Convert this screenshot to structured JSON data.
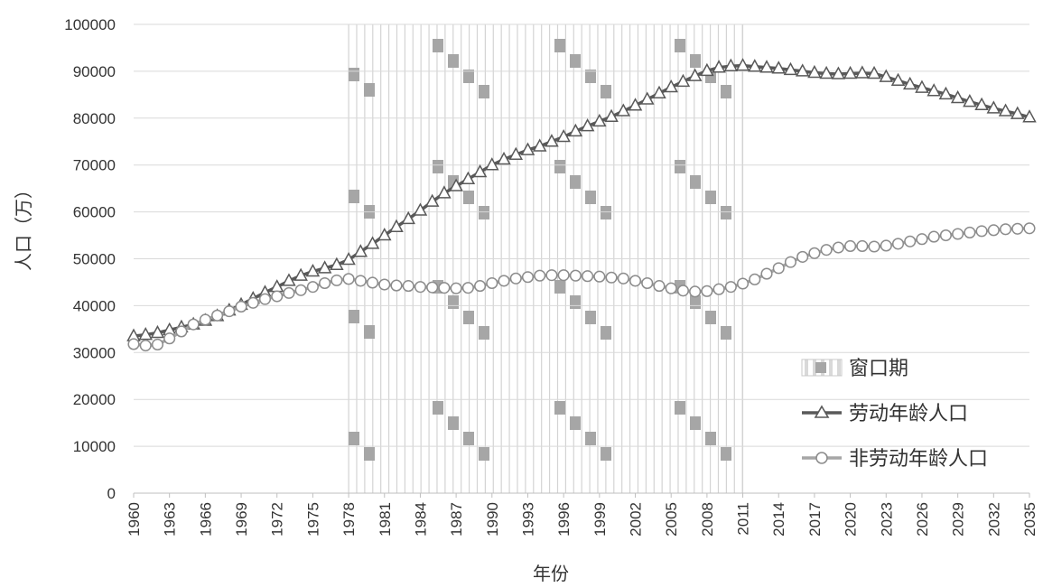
{
  "chart_data": {
    "type": "line",
    "xlabel": "年份",
    "ylabel": "人口（万）",
    "ylim": [
      0,
      100000
    ],
    "yticks": [
      0,
      10000,
      20000,
      30000,
      40000,
      50000,
      60000,
      70000,
      80000,
      90000,
      100000
    ],
    "xlim": [
      1960,
      2035
    ],
    "xticks": [
      1960,
      1963,
      1966,
      1969,
      1972,
      1975,
      1978,
      1981,
      1984,
      1987,
      1990,
      1993,
      1996,
      1999,
      2002,
      2005,
      2008,
      2011,
      2014,
      2017,
      2020,
      2023,
      2026,
      2029,
      2032,
      2035
    ],
    "grid": "horizontal",
    "legend_position": "right",
    "window_period": {
      "name": "窗口期",
      "start": 1978,
      "end": 2011
    },
    "x": [
      1960,
      1961,
      1962,
      1963,
      1964,
      1965,
      1966,
      1967,
      1968,
      1969,
      1970,
      1971,
      1972,
      1973,
      1974,
      1975,
      1976,
      1977,
      1978,
      1979,
      1980,
      1981,
      1982,
      1983,
      1984,
      1985,
      1986,
      1987,
      1988,
      1989,
      1990,
      1991,
      1992,
      1993,
      1994,
      1995,
      1996,
      1997,
      1998,
      1999,
      2000,
      2001,
      2002,
      2003,
      2004,
      2005,
      2006,
      2007,
      2008,
      2009,
      2010,
      2011,
      2012,
      2013,
      2014,
      2015,
      2016,
      2017,
      2018,
      2019,
      2020,
      2021,
      2022,
      2023,
      2024,
      2025,
      2026,
      2027,
      2028,
      2029,
      2030,
      2031,
      2032,
      2033,
      2034,
      2035
    ],
    "series": [
      {
        "name": "劳动年龄人口",
        "marker": "triangle",
        "values": [
          33500,
          33800,
          34200,
          34800,
          35400,
          36000,
          36800,
          37800,
          39000,
          40200,
          41500,
          42800,
          44000,
          45300,
          46400,
          47300,
          48000,
          48700,
          49800,
          51500,
          53200,
          55000,
          56800,
          58500,
          60300,
          62200,
          64000,
          65500,
          67000,
          68500,
          70000,
          71200,
          72200,
          73200,
          74000,
          75000,
          76000,
          77200,
          78300,
          79300,
          80300,
          81500,
          82700,
          84000,
          85300,
          86600,
          87800,
          89000,
          90100,
          90800,
          91100,
          91200,
          91000,
          90800,
          90600,
          90300,
          90000,
          89700,
          89500,
          89400,
          89500,
          89600,
          89500,
          88800,
          88000,
          87200,
          86500,
          85800,
          85100,
          84300,
          83500,
          82800,
          82100,
          81500,
          80900,
          80200
        ]
      },
      {
        "name": "非劳动年龄人口",
        "marker": "circle",
        "values": [
          31800,
          31500,
          31700,
          33000,
          34500,
          36000,
          37000,
          37900,
          38800,
          39800,
          40600,
          41400,
          42000,
          42700,
          43300,
          44000,
          44800,
          45400,
          45700,
          45300,
          44900,
          44500,
          44300,
          44200,
          44000,
          43900,
          43800,
          43700,
          43800,
          44200,
          44800,
          45300,
          45800,
          46100,
          46400,
          46500,
          46500,
          46400,
          46300,
          46200,
          46000,
          45800,
          45300,
          44800,
          44200,
          43700,
          43200,
          43000,
          43100,
          43500,
          44000,
          44700,
          45600,
          46800,
          48000,
          49300,
          50400,
          51200,
          51900,
          52400,
          52700,
          52700,
          52600,
          52800,
          53200,
          53700,
          54200,
          54700,
          55000,
          55300,
          55600,
          55900,
          56100,
          56300,
          56400,
          56500
        ]
      }
    ]
  }
}
